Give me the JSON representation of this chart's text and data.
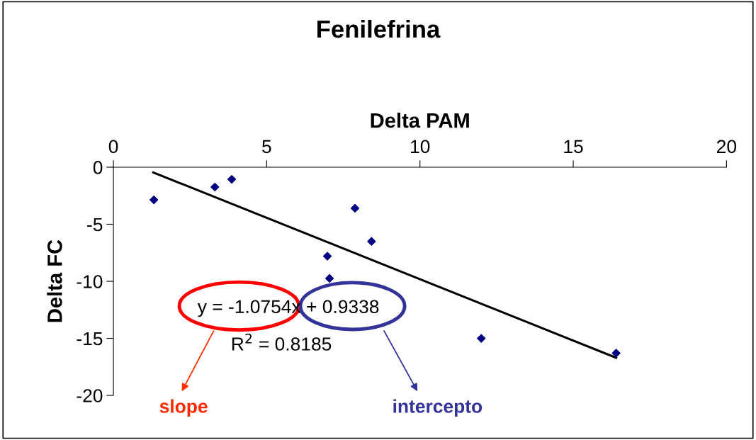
{
  "chart_data": {
    "type": "scatter",
    "title": "Fenilefrina",
    "xlabel": "Delta PAM",
    "ylabel": "Delta FC",
    "xlim": [
      0,
      20
    ],
    "xticks": [
      0,
      5,
      10,
      15,
      20
    ],
    "ylim": [
      -20,
      0
    ],
    "yticks": [
      -20,
      -15,
      -10,
      -5,
      0
    ],
    "grid": false,
    "legend": false,
    "marker": "diamond",
    "series": [
      {
        "color": "#000080",
        "x": [
          1.32,
          3.31,
          3.86,
          7.88,
          8.42,
          6.98,
          7.05,
          12.0,
          16.4
        ],
        "values": [
          -2.86,
          -1.74,
          -1.06,
          -3.6,
          -6.5,
          -7.8,
          -9.75,
          -15.0,
          -16.3
        ]
      },
      {
        "type": "line",
        "color": "#000000",
        "marker": "none",
        "line_style": "solid",
        "x": [
          1.3,
          16.4
        ],
        "values": [
          -0.46,
          -16.7
        ]
      }
    ],
    "annotations": [
      "y = -1.0754x + 0.9338",
      "R$^{2}$ = 0.8185",
      "slope",
      "intercepto"
    ]
  }
}
